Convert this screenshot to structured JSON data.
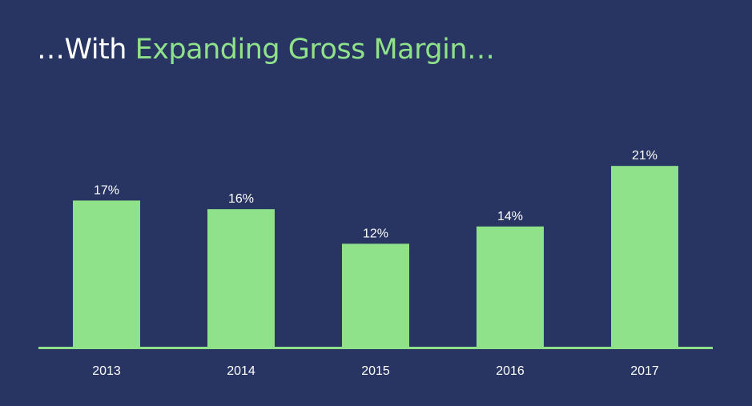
{
  "title": {
    "prefix": "…With ",
    "highlight": "Expanding Gross Margin…"
  },
  "colors": {
    "background": "#283563",
    "accent": "#8fe28a",
    "text": "#ffffff"
  },
  "chart_data": {
    "type": "bar",
    "categories": [
      "2013",
      "2014",
      "2015",
      "2016",
      "2017"
    ],
    "values": [
      17,
      16,
      12,
      14,
      21
    ],
    "value_labels": [
      "17%",
      "16%",
      "12%",
      "14%",
      "21%"
    ],
    "ylim": [
      0,
      40
    ],
    "grid": false,
    "legend": "none"
  }
}
